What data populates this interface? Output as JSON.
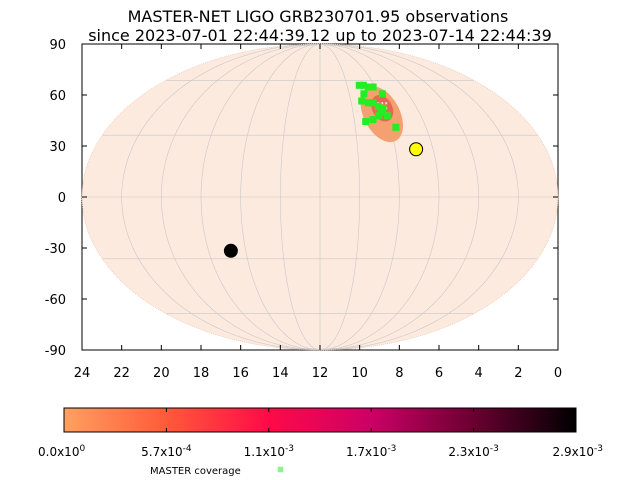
{
  "chart_data": [
    {
      "type": "scatter",
      "title": "MASTER-NET LIGO GRB230701.95 observations",
      "subtitle": "since 2023-07-01 22:44:39.12 up to 2023-07-14 22:44:39",
      "projection": "mollweide",
      "x_ticks": [
        "24",
        "22",
        "20",
        "18",
        "16",
        "14",
        "12",
        "10",
        "8",
        "6",
        "4",
        "2",
        "0"
      ],
      "x_tick_values": [
        24,
        22,
        20,
        18,
        16,
        14,
        12,
        10,
        8,
        6,
        4,
        2,
        0
      ],
      "xlim": [
        24,
        0
      ],
      "y_ticks": [
        "90",
        "60",
        "30",
        "0",
        "-30",
        "-60",
        "-90"
      ],
      "y_tick_values": [
        90,
        60,
        30,
        0,
        -30,
        -60,
        -90
      ],
      "ylim": [
        -90,
        90
      ],
      "grid": true,
      "probability_region": {
        "outer": {
          "ra_h": 8.3,
          "dec": 44,
          "color": "#f4a070"
        },
        "inner": {
          "ra_h": 8.15,
          "dec": 44,
          "color": "#e85a50"
        }
      },
      "master_coverage_points": [
        {
          "ra": 9.1,
          "dec": 57
        },
        {
          "ra": 8.8,
          "dec": 57
        },
        {
          "ra": 8.5,
          "dec": 56
        },
        {
          "ra": 8.15,
          "dec": 56
        },
        {
          "ra": 7.75,
          "dec": 52
        },
        {
          "ra": 9.0,
          "dec": 52
        },
        {
          "ra": 8.9,
          "dec": 47
        },
        {
          "ra": 9.3,
          "dec": 48
        },
        {
          "ra": 8.6,
          "dec": 47
        },
        {
          "ra": 8.35,
          "dec": 45
        },
        {
          "ra": 8.1,
          "dec": 44
        },
        {
          "ra": 8.3,
          "dec": 42
        },
        {
          "ra": 8.0,
          "dec": 40
        },
        {
          "ra": 9.35,
          "dec": 37
        },
        {
          "ra": 7.7,
          "dec": 34
        },
        {
          "ra": 8.5,
          "dec": 40
        },
        {
          "ra": 8.9,
          "dec": 38
        }
      ],
      "sun": {
        "ra_h": 6.9,
        "dec": 23,
        "color": "#ffff00"
      },
      "moon": {
        "ra_h": 16.8,
        "dec": -26,
        "color": "#000000"
      }
    },
    {
      "type": "heatmap",
      "colorbar_ticks": [
        "0.0x10",
        "5.7x10",
        "1.1x10",
        "1.7x10",
        "2.3x10",
        "2.9x10"
      ],
      "colorbar_exponents": [
        "0",
        "-4",
        "-3",
        "-3",
        "-3",
        "-3"
      ],
      "colorbar_range": [
        0,
        0.0029
      ],
      "colors": [
        "#ffa060",
        "#ff5a3a",
        "#ff0a48",
        "#cc0066",
        "#6a0030",
        "#000000"
      ],
      "legend": {
        "label": "MASTER coverage",
        "color": "#80ff80"
      }
    }
  ]
}
